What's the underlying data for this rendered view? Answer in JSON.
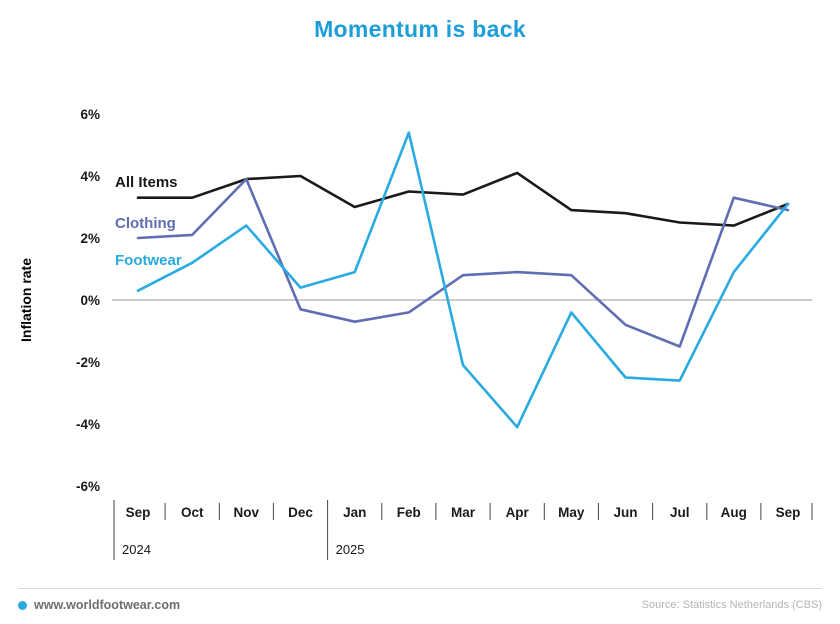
{
  "title": "Momentum is back",
  "ylabel": "Inflation rate",
  "colors": {
    "title": "#1d9ed9",
    "all_items": "#1a1a1a",
    "clothing": "#5f6eb3",
    "footwear": "#29abe2",
    "zero_line": "#999999"
  },
  "chart_data": {
    "type": "line",
    "title": "Momentum is back",
    "ylabel": "Inflation rate",
    "ylim": [
      -6,
      6
    ],
    "yticks": [
      6,
      4,
      2,
      0,
      -2,
      -4,
      -6
    ],
    "ytick_suffix": "%",
    "grid": "zero-line-only",
    "legend_position": "inline-left",
    "x": [
      "Sep",
      "Oct",
      "Nov",
      "Dec",
      "Jan",
      "Feb",
      "Mar",
      "Apr",
      "May",
      "Jun",
      "Jul",
      "Aug",
      "Sep"
    ],
    "year_labels": [
      {
        "label": "2024",
        "index": 0
      },
      {
        "label": "2025",
        "index": 4
      }
    ],
    "series": [
      {
        "name": "All Items",
        "color": "#1a1a1a",
        "values": [
          3.3,
          3.3,
          3.9,
          4.0,
          3.0,
          3.5,
          3.4,
          4.1,
          2.9,
          2.8,
          2.5,
          2.4,
          3.1
        ]
      },
      {
        "name": "Clothing",
        "color": "#5f6eb3",
        "values": [
          2.0,
          2.1,
          3.9,
          -0.3,
          -0.7,
          -0.4,
          0.8,
          0.9,
          0.8,
          -0.8,
          -1.5,
          3.3,
          2.9
        ]
      },
      {
        "name": "Footwear",
        "color": "#29abe2",
        "values": [
          0.3,
          1.2,
          2.4,
          0.4,
          0.9,
          5.4,
          -2.1,
          -4.1,
          -0.4,
          -2.5,
          -2.6,
          0.9,
          3.1
        ]
      }
    ]
  },
  "footer": {
    "site": "www.worldfootwear.com",
    "source": "Source: Statistics Netherlands (CBS)"
  }
}
